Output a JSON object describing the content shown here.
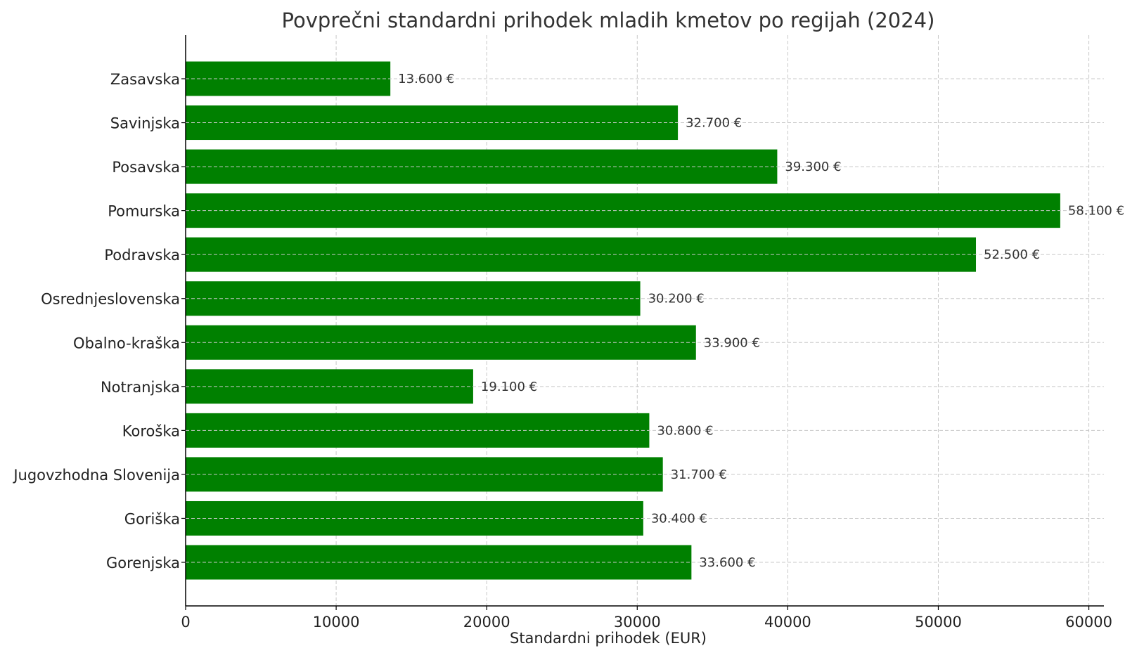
{
  "chart_data": {
    "type": "bar",
    "orientation": "horizontal",
    "title": "Povprečni standardni prihodek mladih kmetov po regijah (2024)",
    "xlabel": "Standardni prihodek (EUR)",
    "ylabel": "",
    "xlim": [
      0,
      61000
    ],
    "xticks": [
      0,
      10000,
      20000,
      30000,
      40000,
      50000,
      60000
    ],
    "xtick_labels": [
      "0",
      "10000",
      "20000",
      "30000",
      "40000",
      "50000",
      "60000"
    ],
    "grid": true,
    "bar_color": "#008000",
    "categories": [
      "Zasavska",
      "Savinjska",
      "Posavska",
      "Pomurska",
      "Podravska",
      "Osrednjeslovenska",
      "Obalno-kraška",
      "Notranjska",
      "Koroška",
      "Jugovzhodna Slovenija",
      "Goriška",
      "Gorenjska"
    ],
    "values": [
      13600,
      32700,
      39300,
      58100,
      52500,
      30200,
      33900,
      19100,
      30800,
      31700,
      30400,
      33600
    ],
    "data_labels": [
      "13.600 €",
      "32.700 €",
      "39.300 €",
      "58.100 €",
      "52.500 €",
      "30.200 €",
      "33.900 €",
      "19.100 €",
      "30.800 €",
      "31.700 €",
      "30.400 €",
      "33.600 €"
    ]
  }
}
